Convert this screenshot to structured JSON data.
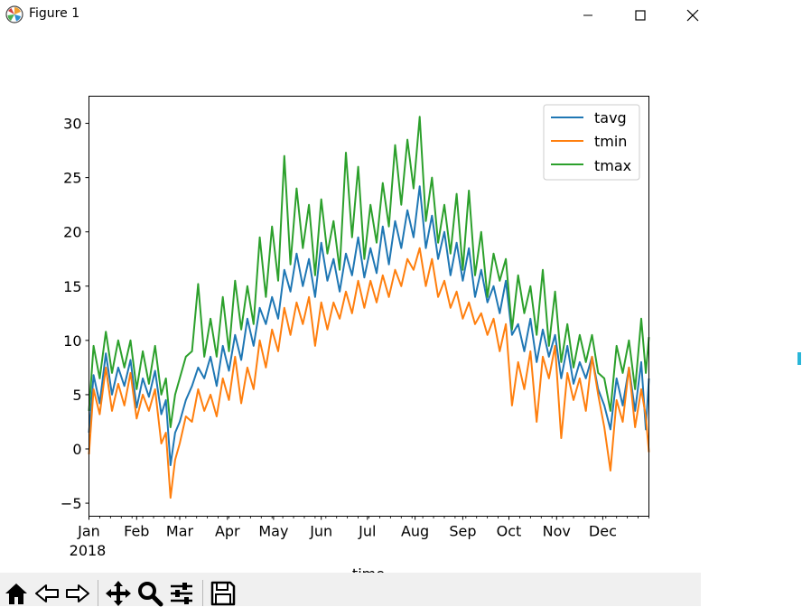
{
  "window": {
    "title": "Figure 1",
    "icons": [
      "matplotlib-logo-icon",
      "minimize-icon",
      "maximize-icon",
      "close-icon"
    ]
  },
  "toolbar": {
    "buttons": [
      "home-icon",
      "back-icon",
      "forward-icon",
      "pan-icon",
      "zoom-icon",
      "configure-subplots-icon",
      "save-icon"
    ]
  },
  "colors": {
    "tavg": "#1f77b4",
    "tmin": "#ff7f0e",
    "tmax": "#2ca02c"
  },
  "chart_data": {
    "type": "line",
    "xlabel": "time",
    "ylabel": "",
    "x_range": [
      "2018-01-01",
      "2018-12-31"
    ],
    "ylim": [
      -6.2,
      32.5
    ],
    "y_ticks": [
      {
        "value": -5,
        "label": "−5"
      },
      {
        "value": 0,
        "label": "0"
      },
      {
        "value": 5,
        "label": "5"
      },
      {
        "value": 10,
        "label": "10"
      },
      {
        "value": 15,
        "label": "15"
      },
      {
        "value": 20,
        "label": "20"
      },
      {
        "value": 25,
        "label": "25"
      },
      {
        "value": 30,
        "label": "30"
      }
    ],
    "x_ticks": [
      {
        "date": "2018-01-01",
        "label": "Jan"
      },
      {
        "date": "2018-02-01",
        "label": "Feb"
      },
      {
        "date": "2018-03-01",
        "label": "Mar"
      },
      {
        "date": "2018-04-01",
        "label": "Apr"
      },
      {
        "date": "2018-05-01",
        "label": "May"
      },
      {
        "date": "2018-06-01",
        "label": "Jun"
      },
      {
        "date": "2018-07-01",
        "label": "Jul"
      },
      {
        "date": "2018-08-01",
        "label": "Aug"
      },
      {
        "date": "2018-09-01",
        "label": "Sep"
      },
      {
        "date": "2018-10-01",
        "label": "Oct"
      },
      {
        "date": "2018-11-01",
        "label": "Nov"
      },
      {
        "date": "2018-12-01",
        "label": "Dec"
      }
    ],
    "year_label": "2018",
    "grid": false,
    "legend": "upper right",
    "series": [
      {
        "name": "tavg",
        "color": "#1f77b4",
        "x": [
          "2018-01-01",
          "2018-01-04",
          "2018-01-08",
          "2018-01-12",
          "2018-01-16",
          "2018-01-20",
          "2018-01-24",
          "2018-01-28",
          "2018-02-01",
          "2018-02-05",
          "2018-02-09",
          "2018-02-13",
          "2018-02-17",
          "2018-02-20",
          "2018-02-23",
          "2018-02-26",
          "2018-03-01",
          "2018-03-05",
          "2018-03-09",
          "2018-03-13",
          "2018-03-17",
          "2018-03-21",
          "2018-03-25",
          "2018-03-29",
          "2018-04-02",
          "2018-04-06",
          "2018-04-10",
          "2018-04-14",
          "2018-04-18",
          "2018-04-22",
          "2018-04-26",
          "2018-04-30",
          "2018-05-04",
          "2018-05-08",
          "2018-05-12",
          "2018-05-16",
          "2018-05-20",
          "2018-05-24",
          "2018-05-28",
          "2018-06-01",
          "2018-06-05",
          "2018-06-09",
          "2018-06-13",
          "2018-06-17",
          "2018-06-21",
          "2018-06-25",
          "2018-06-29",
          "2018-07-03",
          "2018-07-07",
          "2018-07-11",
          "2018-07-15",
          "2018-07-19",
          "2018-07-23",
          "2018-07-27",
          "2018-07-31",
          "2018-08-04",
          "2018-08-08",
          "2018-08-12",
          "2018-08-16",
          "2018-08-20",
          "2018-08-24",
          "2018-08-28",
          "2018-09-01",
          "2018-09-05",
          "2018-09-09",
          "2018-09-13",
          "2018-09-17",
          "2018-09-21",
          "2018-09-25",
          "2018-09-29",
          "2018-10-03",
          "2018-10-07",
          "2018-10-11",
          "2018-10-15",
          "2018-10-19",
          "2018-10-23",
          "2018-10-27",
          "2018-10-31",
          "2018-11-04",
          "2018-11-08",
          "2018-11-12",
          "2018-11-16",
          "2018-11-20",
          "2018-11-24",
          "2018-11-28",
          "2018-12-02",
          "2018-12-06",
          "2018-12-10",
          "2018-12-14",
          "2018-12-18",
          "2018-12-22",
          "2018-12-26",
          "2018-12-29",
          "2018-12-31"
        ],
        "y": [
          1.5,
          6.8,
          4.2,
          8.8,
          5.0,
          7.5,
          5.8,
          8.2,
          3.8,
          6.5,
          4.8,
          7.2,
          3.2,
          4.5,
          -1.5,
          1.5,
          2.5,
          4.5,
          5.8,
          7.5,
          6.5,
          8.5,
          5.8,
          9.5,
          7.2,
          10.5,
          8.2,
          12.0,
          9.5,
          13.0,
          11.5,
          14.0,
          12.0,
          16.5,
          14.5,
          18.0,
          15.0,
          17.5,
          14.0,
          19.0,
          15.5,
          17.5,
          14.5,
          18.0,
          16.0,
          19.5,
          15.8,
          18.5,
          16.2,
          20.5,
          17.0,
          21.0,
          18.5,
          22.0,
          19.5,
          24.2,
          18.5,
          21.5,
          17.5,
          20.0,
          16.0,
          19.0,
          15.5,
          18.5,
          14.0,
          16.5,
          13.5,
          15.0,
          12.5,
          15.5,
          10.5,
          11.5,
          9.0,
          12.0,
          8.0,
          11.0,
          8.5,
          10.5,
          6.5,
          9.5,
          6.0,
          8.0,
          6.5,
          8.5,
          5.5,
          4.0,
          1.8,
          6.5,
          4.0,
          7.5,
          3.5,
          8.0,
          1.8,
          6.5
        ]
      },
      {
        "name": "tmin",
        "color": "#ff7f0e",
        "x": [
          "2018-01-01",
          "2018-01-04",
          "2018-01-08",
          "2018-01-12",
          "2018-01-16",
          "2018-01-20",
          "2018-01-24",
          "2018-01-28",
          "2018-02-01",
          "2018-02-05",
          "2018-02-09",
          "2018-02-13",
          "2018-02-17",
          "2018-02-20",
          "2018-02-23",
          "2018-02-26",
          "2018-03-01",
          "2018-03-05",
          "2018-03-09",
          "2018-03-13",
          "2018-03-17",
          "2018-03-21",
          "2018-03-25",
          "2018-03-29",
          "2018-04-02",
          "2018-04-06",
          "2018-04-10",
          "2018-04-14",
          "2018-04-18",
          "2018-04-22",
          "2018-04-26",
          "2018-04-30",
          "2018-05-04",
          "2018-05-08",
          "2018-05-12",
          "2018-05-16",
          "2018-05-20",
          "2018-05-24",
          "2018-05-28",
          "2018-06-01",
          "2018-06-05",
          "2018-06-09",
          "2018-06-13",
          "2018-06-17",
          "2018-06-21",
          "2018-06-25",
          "2018-06-29",
          "2018-07-03",
          "2018-07-07",
          "2018-07-11",
          "2018-07-15",
          "2018-07-19",
          "2018-07-23",
          "2018-07-27",
          "2018-07-31",
          "2018-08-04",
          "2018-08-08",
          "2018-08-12",
          "2018-08-16",
          "2018-08-20",
          "2018-08-24",
          "2018-08-28",
          "2018-09-01",
          "2018-09-05",
          "2018-09-09",
          "2018-09-13",
          "2018-09-17",
          "2018-09-21",
          "2018-09-25",
          "2018-09-29",
          "2018-10-03",
          "2018-10-07",
          "2018-10-11",
          "2018-10-15",
          "2018-10-19",
          "2018-10-23",
          "2018-10-27",
          "2018-10-31",
          "2018-11-04",
          "2018-11-08",
          "2018-11-12",
          "2018-11-16",
          "2018-11-20",
          "2018-11-24",
          "2018-11-28",
          "2018-12-02",
          "2018-12-06",
          "2018-12-10",
          "2018-12-14",
          "2018-12-18",
          "2018-12-22",
          "2018-12-26",
          "2018-12-29",
          "2018-12-31"
        ],
        "y": [
          -0.5,
          5.5,
          3.2,
          7.5,
          3.5,
          6.0,
          4.0,
          7.0,
          2.8,
          5.0,
          3.5,
          5.5,
          0.5,
          1.5,
          -4.5,
          -1.0,
          0.5,
          3.0,
          2.5,
          5.5,
          3.5,
          5.0,
          3.0,
          6.5,
          4.5,
          8.5,
          4.2,
          7.5,
          5.5,
          10.0,
          7.5,
          11.0,
          9.0,
          13.0,
          10.5,
          13.5,
          11.5,
          14.0,
          9.5,
          13.5,
          11.0,
          13.5,
          12.0,
          14.5,
          12.5,
          15.5,
          13.0,
          15.5,
          13.5,
          16.0,
          14.0,
          16.5,
          15.0,
          17.5,
          16.5,
          18.5,
          15.0,
          17.5,
          14.0,
          15.5,
          13.0,
          14.5,
          12.0,
          13.5,
          11.5,
          12.5,
          10.5,
          12.0,
          9.0,
          11.5,
          4.0,
          8.0,
          5.5,
          9.0,
          2.5,
          8.5,
          6.5,
          9.5,
          1.0,
          7.0,
          4.5,
          6.5,
          3.5,
          8.5,
          5.0,
          2.0,
          -2.0,
          4.5,
          2.5,
          7.5,
          2.0,
          5.5,
          3.0,
          -0.3
        ]
      },
      {
        "name": "tmax",
        "color": "#2ca02c",
        "x": [
          "2018-01-01",
          "2018-01-04",
          "2018-01-08",
          "2018-01-12",
          "2018-01-16",
          "2018-01-20",
          "2018-01-24",
          "2018-01-28",
          "2018-02-01",
          "2018-02-05",
          "2018-02-09",
          "2018-02-13",
          "2018-02-17",
          "2018-02-20",
          "2018-02-23",
          "2018-02-26",
          "2018-03-01",
          "2018-03-05",
          "2018-03-09",
          "2018-03-13",
          "2018-03-17",
          "2018-03-21",
          "2018-03-25",
          "2018-03-29",
          "2018-04-02",
          "2018-04-06",
          "2018-04-10",
          "2018-04-14",
          "2018-04-18",
          "2018-04-22",
          "2018-04-26",
          "2018-04-30",
          "2018-05-04",
          "2018-05-08",
          "2018-05-12",
          "2018-05-16",
          "2018-05-20",
          "2018-05-24",
          "2018-05-28",
          "2018-06-01",
          "2018-06-05",
          "2018-06-09",
          "2018-06-13",
          "2018-06-17",
          "2018-06-21",
          "2018-06-25",
          "2018-06-29",
          "2018-07-03",
          "2018-07-07",
          "2018-07-11",
          "2018-07-15",
          "2018-07-19",
          "2018-07-23",
          "2018-07-27",
          "2018-07-31",
          "2018-08-04",
          "2018-08-08",
          "2018-08-12",
          "2018-08-16",
          "2018-08-20",
          "2018-08-24",
          "2018-08-28",
          "2018-09-01",
          "2018-09-05",
          "2018-09-09",
          "2018-09-13",
          "2018-09-17",
          "2018-09-21",
          "2018-09-25",
          "2018-09-29",
          "2018-10-03",
          "2018-10-07",
          "2018-10-11",
          "2018-10-15",
          "2018-10-19",
          "2018-10-23",
          "2018-10-27",
          "2018-10-31",
          "2018-11-04",
          "2018-11-08",
          "2018-11-12",
          "2018-11-16",
          "2018-11-20",
          "2018-11-24",
          "2018-11-28",
          "2018-12-02",
          "2018-12-06",
          "2018-12-10",
          "2018-12-14",
          "2018-12-18",
          "2018-12-22",
          "2018-12-26",
          "2018-12-29",
          "2018-12-31"
        ],
        "y": [
          3.5,
          9.5,
          6.5,
          10.8,
          7.0,
          10.0,
          7.5,
          10.0,
          5.5,
          9.0,
          6.0,
          9.5,
          5.0,
          6.5,
          2.0,
          5.0,
          6.5,
          8.5,
          9.0,
          15.2,
          8.5,
          12.0,
          8.5,
          14.0,
          9.0,
          15.5,
          11.0,
          15.0,
          11.5,
          19.5,
          14.0,
          20.5,
          15.5,
          27.0,
          17.0,
          24.0,
          18.5,
          22.5,
          16.0,
          23.0,
          18.0,
          21.0,
          16.5,
          27.3,
          19.5,
          26.0,
          17.5,
          22.5,
          19.0,
          24.5,
          20.5,
          28.0,
          22.5,
          28.5,
          24.0,
          30.6,
          21.0,
          25.0,
          19.0,
          22.5,
          18.0,
          23.5,
          16.5,
          23.8,
          16.0,
          20.0,
          14.0,
          18.0,
          15.5,
          17.5,
          11.0,
          16.0,
          12.5,
          15.0,
          10.5,
          16.5,
          9.5,
          14.5,
          8.0,
          11.5,
          7.5,
          10.5,
          8.0,
          10.5,
          7.0,
          6.5,
          3.5,
          9.5,
          7.0,
          10.0,
          5.5,
          12.0,
          7.0,
          10.3
        ]
      }
    ]
  }
}
